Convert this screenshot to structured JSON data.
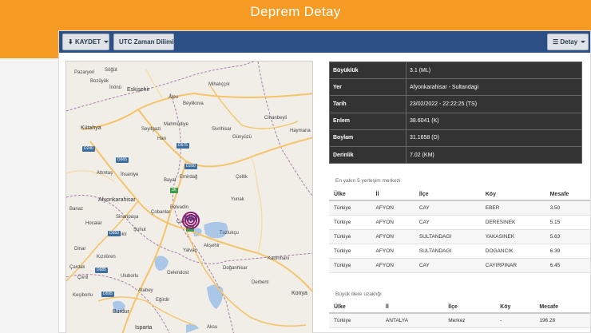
{
  "page": {
    "title": "Deprem Detay"
  },
  "toolbar": {
    "save_label": "KAYDET",
    "utc_label": "UTC Zaman Dilimi",
    "detail_label": "Detay"
  },
  "map": {
    "labels": {
      "pazaryeri": "Pazaryeri",
      "sogut": "Söğüt",
      "bozuyuk": "Bozüyük",
      "inonu": "İnönü",
      "eskisehir": "Eskişehir",
      "mihaliccik": "Mihalıççık",
      "alpu": "Alpu",
      "beylikova": "Beylikova",
      "kutahya": "Kütahya",
      "seyitgazi": "Seyitgazi",
      "mahmudiye": "Mahmudiye",
      "sivrihisar": "Sivrihisar",
      "gunyuzu": "Günyüzü",
      "cihanbeyli": "Cihanbeyli",
      "haymana": "Haymana",
      "han": "Han",
      "altintas": "Altıntaş",
      "ihsaniye": "İhsaniye",
      "bayat": "Bayat",
      "emirdag": "Emirdağ",
      "celtik": "Çeltik",
      "afyonkarahisar": "Afyonkarahisar",
      "yunak": "Yunak",
      "banaz": "Banaz",
      "cobanlar": "Çobanlar",
      "bolvadin": "Bolvadin",
      "sinanpasa": "Sinanpaşa",
      "hocalar": "Hocalar",
      "suhut": "Şuhut",
      "cay": "Çay",
      "tuzlukcu": "Tuzlukçu",
      "sandikli": "Sandıklı",
      "aksehir": "Akşehir",
      "dinar": "Dinar",
      "kiziloren": "Kızılören",
      "yalvac": "Yalvaç",
      "kadinhani": "Kadınhanı",
      "cardak": "Çardak",
      "civril": "Çivril",
      "uluborlu": "Uluborlu",
      "gelendost": "Gelendost",
      "doganhisar": "Doğanhisar",
      "derbent": "Derbent",
      "atabey": "Atabey",
      "egirdir": "Eğirdir",
      "aksu": "Aksu",
      "burdur": "Burdur",
      "isparta": "Isparta",
      "konya": "Konya",
      "kecio": "Keçiborlu"
    },
    "roads": {
      "d240": "D240",
      "d675": "D675",
      "d665": "D665",
      "d260": "D260",
      "d300": "D300",
      "d650": "D650",
      "d685": "D685",
      "d695": "D695",
      "g36": "36",
      "g31": "31"
    }
  },
  "details": {
    "rows": [
      {
        "key": "Büyüklük",
        "value": "3.1 (ML)"
      },
      {
        "key": "Yer",
        "value": "Afyonkarahisar - Sultandagi"
      },
      {
        "key": "Tarih",
        "value": "23/02/2022 - 22:22:25 (TS)"
      },
      {
        "key": "Enlem",
        "value": "38.6041 (K)"
      },
      {
        "key": "Boylam",
        "value": "31.1658 (D)"
      },
      {
        "key": "Derinlik",
        "value": "7.02 (KM)"
      }
    ]
  },
  "nearby": {
    "title": "En yakın 5 yerleşim merkezi",
    "headers": {
      "country": "Ülke",
      "province": "İl",
      "district": "İlçe",
      "village": "Köy",
      "distance": "Mesafe"
    },
    "rows": [
      {
        "country": "Türkiye",
        "province": "AFYON",
        "district": "CAY",
        "village": "EBER",
        "distance": "3.50"
      },
      {
        "country": "Türkiye",
        "province": "AFYON",
        "district": "CAY",
        "village": "DERESINEK",
        "distance": "5.15"
      },
      {
        "country": "Türkiye",
        "province": "AFYON",
        "district": "SULTANDAGI",
        "village": "YAKASINEK",
        "distance": "5.63"
      },
      {
        "country": "Türkiye",
        "province": "AFYON",
        "district": "SULTANDAGI",
        "village": "DOGANCIK",
        "distance": "6.39"
      },
      {
        "country": "Türkiye",
        "province": "AFYON",
        "district": "CAY",
        "village": "CAYIRPINAR",
        "distance": "6.45"
      }
    ]
  },
  "cities": {
    "title": "Büyük illere uzaklığı",
    "headers": {
      "country": "Ülke",
      "province": "İl",
      "district": "İlçe",
      "village": "Köy",
      "distance": "Mesafe"
    },
    "rows": [
      {
        "country": "Türkiye",
        "province": "ANTALYA",
        "district": "Merkez",
        "village": "-",
        "distance": "196.28"
      }
    ]
  }
}
